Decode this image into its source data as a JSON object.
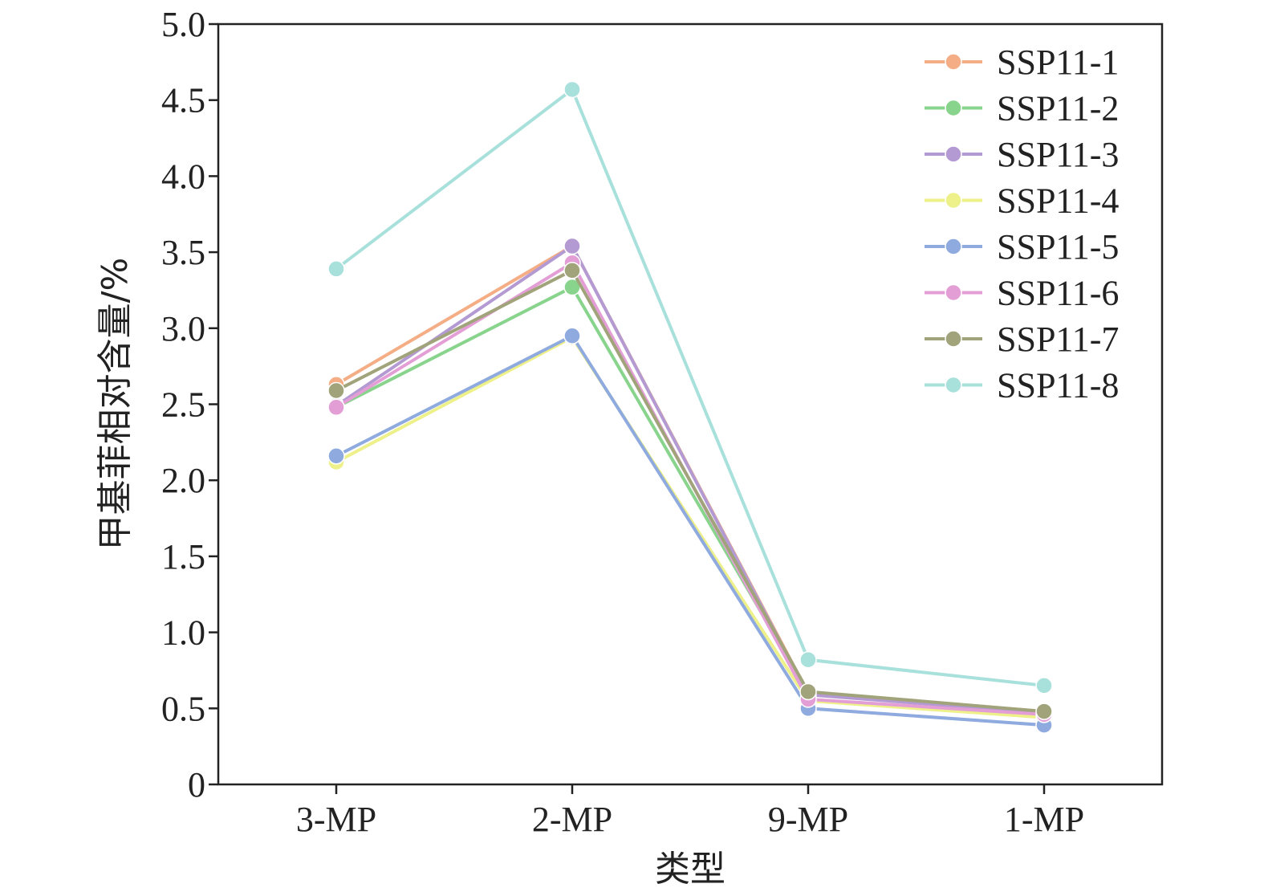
{
  "chart_data": {
    "type": "line",
    "xlabel": "类型",
    "ylabel": "甲基菲相对含量/%",
    "categories": [
      "3-MP",
      "2-MP",
      "9-MP",
      "1-MP"
    ],
    "ylim": [
      0,
      5.0
    ],
    "yticks": [
      0,
      0.5,
      1.0,
      1.5,
      2.0,
      2.5,
      3.0,
      3.5,
      4.0,
      4.5,
      5.0
    ],
    "ytick_labels": [
      "0",
      "0.5",
      "1.0",
      "1.5",
      "2.0",
      "2.5",
      "3.0",
      "3.5",
      "4.0",
      "4.5",
      "5.0"
    ],
    "grid": false,
    "legend_position": "top-right",
    "series": [
      {
        "name": "SSP11-1",
        "color": "#f4ad85",
        "values": [
          2.63,
          3.54,
          0.6,
          0.48
        ]
      },
      {
        "name": "SSP11-2",
        "color": "#88d48c",
        "values": [
          2.48,
          3.27,
          0.6,
          0.47
        ]
      },
      {
        "name": "SSP11-3",
        "color": "#b49ad2",
        "values": [
          2.49,
          3.54,
          0.59,
          0.47
        ]
      },
      {
        "name": "SSP11-4",
        "color": "#eef08a",
        "values": [
          2.12,
          2.94,
          0.55,
          0.44
        ]
      },
      {
        "name": "SSP11-5",
        "color": "#8eaade",
        "values": [
          2.16,
          2.95,
          0.5,
          0.39
        ]
      },
      {
        "name": "SSP11-6",
        "color": "#e39ed6",
        "values": [
          2.48,
          3.43,
          0.56,
          0.46
        ]
      },
      {
        "name": "SSP11-7",
        "color": "#a1a47a",
        "values": [
          2.59,
          3.38,
          0.61,
          0.48
        ]
      },
      {
        "name": "SSP11-8",
        "color": "#a8e0db",
        "values": [
          3.39,
          4.57,
          0.82,
          0.65
        ]
      }
    ]
  }
}
